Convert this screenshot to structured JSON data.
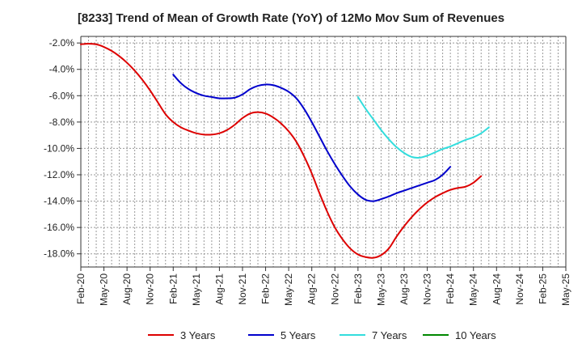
{
  "chart_data": {
    "type": "line",
    "title": "[8233]  Trend of Mean of Growth Rate (YoY) of 12Mo Mov Sum of Revenues",
    "xlabel": "",
    "ylabel": "",
    "ylim": [
      -19.0,
      -1.5
    ],
    "yticks": [
      -2.0,
      -4.0,
      -6.0,
      -8.0,
      -10.0,
      -12.0,
      -14.0,
      -16.0,
      -18.0
    ],
    "ytick_labels": [
      "-2.0%",
      "-4.0%",
      "-6.0%",
      "-8.0%",
      "-10.0%",
      "-12.0%",
      "-14.0%",
      "-16.0%",
      "-18.0%"
    ],
    "xtick_labels": [
      "Feb-20",
      "May-20",
      "Aug-20",
      "Nov-20",
      "Feb-21",
      "May-21",
      "Aug-21",
      "Nov-21",
      "Feb-22",
      "May-22",
      "Aug-22",
      "Nov-22",
      "Feb-23",
      "May-23",
      "Aug-23",
      "Nov-23",
      "Feb-24",
      "May-24",
      "Aug-24",
      "Nov-24",
      "Feb-25",
      "May-25"
    ],
    "grid": true,
    "series": [
      {
        "name": "3 Years",
        "color": "#dd0000",
        "start_month": 0,
        "values": [
          -2.1,
          -2.05,
          -2.1,
          -2.3,
          -2.6,
          -3.0,
          -3.5,
          -4.1,
          -4.8,
          -5.6,
          -6.5,
          -7.4,
          -8.0,
          -8.4,
          -8.65,
          -8.85,
          -8.95,
          -8.95,
          -8.85,
          -8.6,
          -8.2,
          -7.7,
          -7.35,
          -7.25,
          -7.35,
          -7.65,
          -8.1,
          -8.7,
          -9.5,
          -10.6,
          -11.9,
          -13.4,
          -14.8,
          -16.0,
          -16.9,
          -17.6,
          -18.05,
          -18.25,
          -18.3,
          -18.1,
          -17.6,
          -16.7,
          -15.9,
          -15.2,
          -14.6,
          -14.1,
          -13.7,
          -13.4,
          -13.15,
          -13.0,
          -12.9,
          -12.6,
          -12.1
        ]
      },
      {
        "name": "5 Years",
        "color": "#0000cc",
        "start_month": 12,
        "values": [
          -4.4,
          -5.05,
          -5.5,
          -5.8,
          -6.0,
          -6.1,
          -6.2,
          -6.2,
          -6.15,
          -5.9,
          -5.5,
          -5.25,
          -5.15,
          -5.2,
          -5.4,
          -5.7,
          -6.2,
          -7.0,
          -8.0,
          -9.1,
          -10.2,
          -11.2,
          -12.1,
          -12.9,
          -13.5,
          -13.9,
          -14.0,
          -13.85,
          -13.65,
          -13.4,
          -13.2,
          -13.0,
          -12.8,
          -12.6,
          -12.4,
          -12.0,
          -11.4
        ]
      },
      {
        "name": "7 Years",
        "color": "#33dddd",
        "start_month": 36,
        "values": [
          -6.1,
          -7.0,
          -7.8,
          -8.6,
          -9.3,
          -9.9,
          -10.35,
          -10.65,
          -10.7,
          -10.55,
          -10.3,
          -10.05,
          -9.85,
          -9.6,
          -9.35,
          -9.15,
          -8.85,
          -8.4
        ]
      },
      {
        "name": "10 Years",
        "color": "#008800",
        "start_month": 0,
        "values": []
      }
    ]
  }
}
